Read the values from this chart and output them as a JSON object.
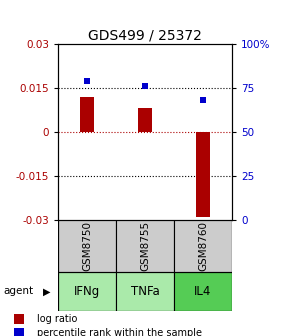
{
  "title": "GDS499 / 25372",
  "samples": [
    "GSM8750",
    "GSM8755",
    "GSM8760"
  ],
  "agents": [
    "IFNg",
    "TNFa",
    "IL4"
  ],
  "log_ratios": [
    0.012,
    0.008,
    -0.029
  ],
  "percentile_ranks": [
    79,
    76,
    68
  ],
  "bar_color": "#aa0000",
  "dot_color": "#0000cc",
  "left_ylim": [
    -0.03,
    0.03
  ],
  "right_ylim": [
    0,
    100
  ],
  "left_yticks": [
    -0.03,
    -0.015,
    0,
    0.015,
    0.03
  ],
  "right_yticks": [
    0,
    25,
    50,
    75,
    100
  ],
  "right_yticklabels": [
    "0",
    "25",
    "50",
    "75",
    "100%"
  ],
  "gray_box_color": "#cccccc",
  "green_box_colors": [
    "#aaeaaa",
    "#aaeaaa",
    "#55cc55"
  ],
  "title_fontsize": 10,
  "tick_fontsize": 7.5,
  "legend_fontsize": 7,
  "agent_label_fontsize": 8.5,
  "sample_label_fontsize": 7.5,
  "bar_width": 0.25
}
